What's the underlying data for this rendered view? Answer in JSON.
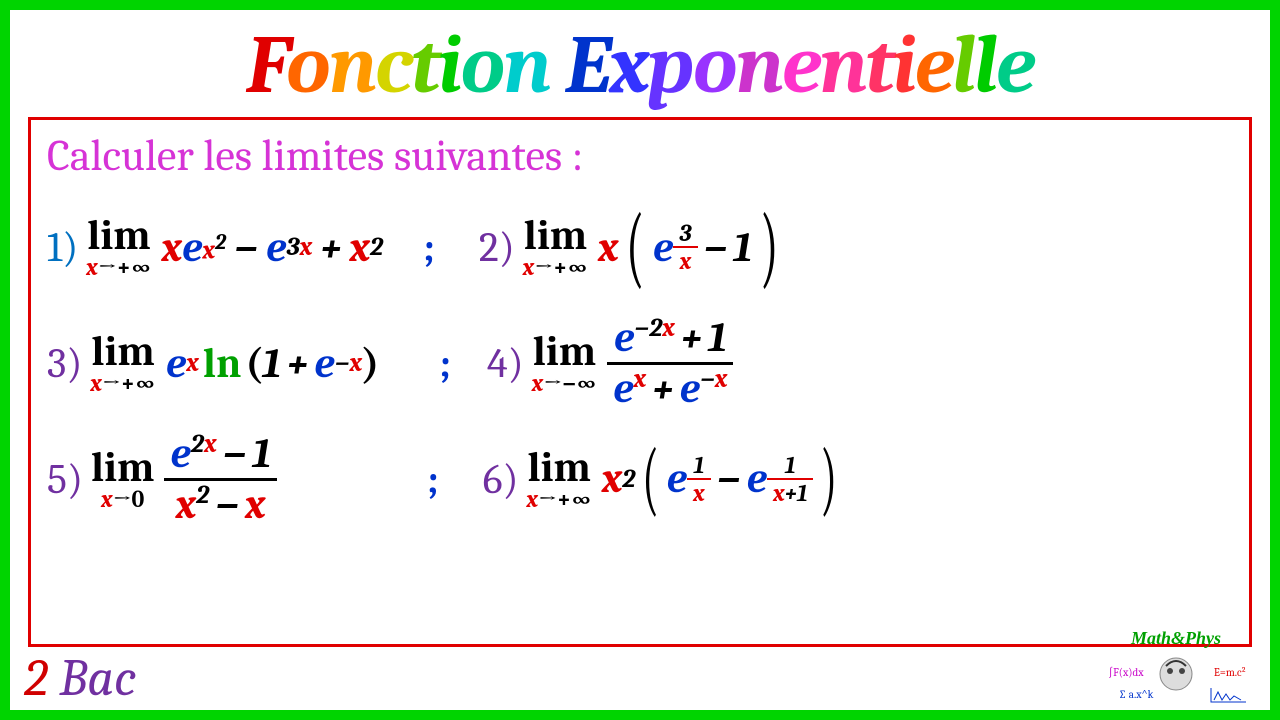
{
  "title_parts": [
    {
      "text": "F",
      "color": "#e00000"
    },
    {
      "text": "o",
      "color": "#ff6600"
    },
    {
      "text": "n",
      "color": "#ff9900"
    },
    {
      "text": "c",
      "color": "#d4d400"
    },
    {
      "text": "t",
      "color": "#66cc00"
    },
    {
      "text": "i",
      "color": "#00cc00"
    },
    {
      "text": "o",
      "color": "#00cc88"
    },
    {
      "text": "n",
      "color": "#00cccc"
    },
    {
      "text": " ",
      "color": "#000"
    },
    {
      "text": "E",
      "color": "#0033cc"
    },
    {
      "text": "x",
      "color": "#3333ff"
    },
    {
      "text": "p",
      "color": "#6633ff"
    },
    {
      "text": "o",
      "color": "#9933ff"
    },
    {
      "text": "n",
      "color": "#cc33cc"
    },
    {
      "text": "e",
      "color": "#ff33cc"
    },
    {
      "text": "n",
      "color": "#ff3399"
    },
    {
      "text": "t",
      "color": "#ff3366"
    },
    {
      "text": "i",
      "color": "#ff3333"
    },
    {
      "text": "e",
      "color": "#ff6600"
    },
    {
      "text": "l",
      "color": "#66cc00"
    },
    {
      "text": "l",
      "color": "#00cc00"
    },
    {
      "text": "e",
      "color": "#00cc88"
    }
  ],
  "instruction": "Calculer les limites suivantes :",
  "labels": {
    "lim": "lim",
    "to_pinf": "→+∞",
    "to_minf": "→−∞",
    "to_0": "→0",
    "sep": ";",
    "ln": "ln"
  },
  "p": {
    "1": "1)",
    "2": "2)",
    "3": "3)",
    "4": "4)",
    "5": "5)",
    "6": "6)"
  },
  "footer": {
    "n": "2",
    "text": "Bac"
  },
  "logo": {
    "brand": "Math&Phys",
    "eq1": "∫F(x)dx",
    "eq2": "E=m.c²",
    "eq3": "∑ a.x^k"
  },
  "colors": {
    "border": "#00d400",
    "red_border": "#e00000",
    "instruction": "#d633d6",
    "pnum": "#7030a0",
    "x": "#e00000",
    "e": "#0033cc",
    "ln": "#00a000",
    "footer_n": "#d00000",
    "footer_text": "#7030a0"
  }
}
